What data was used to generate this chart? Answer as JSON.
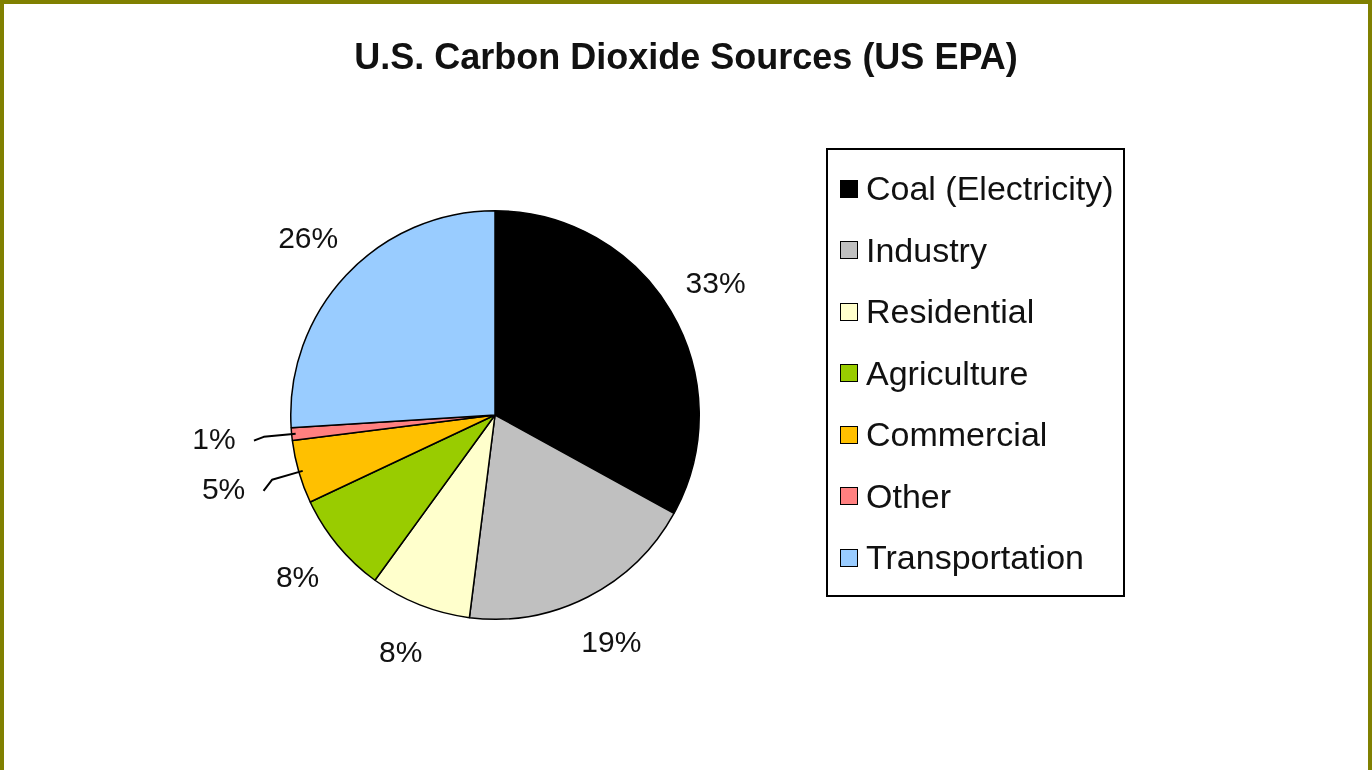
{
  "chart_data": {
    "type": "pie",
    "title": "U.S. Carbon Dioxide Sources (US EPA)",
    "categories": [
      "Coal (Electricity)",
      "Industry",
      "Residential",
      "Agriculture",
      "Commercial",
      "Other",
      "Transportation"
    ],
    "values": [
      33,
      19,
      8,
      8,
      5,
      1,
      26
    ],
    "value_labels": [
      "33%",
      "19%",
      "8%",
      "8%",
      "5%",
      "1%",
      "26%"
    ],
    "colors": [
      "#000000",
      "#c0c0c0",
      "#ffffcc",
      "#99cc00",
      "#ffc000",
      "#ff8080",
      "#99ccff"
    ],
    "legend": "right"
  }
}
